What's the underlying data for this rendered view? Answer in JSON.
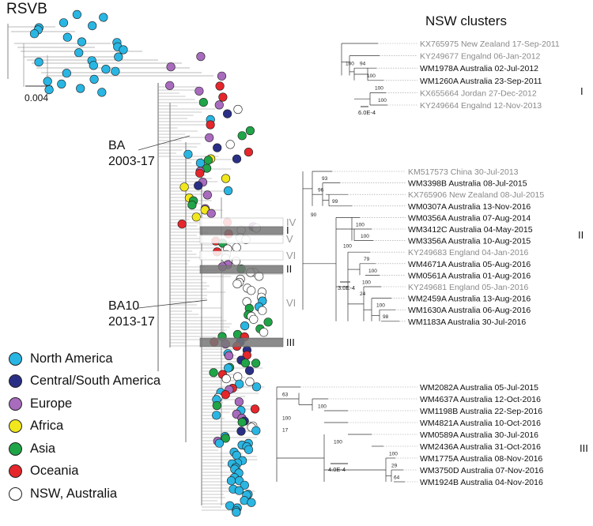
{
  "title": "RSVB",
  "main_scale": "0.004",
  "nsw_title": "NSW clusters",
  "ba_label": {
    "name": "BA",
    "years": "2003-17"
  },
  "ba10_label": {
    "name": "BA10",
    "years": "2013-17"
  },
  "colors": {
    "north_america": "#29b6e3",
    "central_south_america": "#2a2f86",
    "europe": "#a86bbd",
    "africa": "#f1e71c",
    "asia": "#1fa447",
    "oceania": "#e5262b",
    "nsw": "#ffffff"
  },
  "legend": [
    {
      "label": "North America",
      "color": "#29b6e3"
    },
    {
      "label": "Central/South America",
      "color": "#2a2f86"
    },
    {
      "label": "Europe",
      "color": "#a86bbd"
    },
    {
      "label": "Africa",
      "color": "#f1e71c"
    },
    {
      "label": "Asia",
      "color": "#1fa447"
    },
    {
      "label": "Oceania",
      "color": "#e5262b"
    },
    {
      "label": "NSW, Australia",
      "color": "#ffffff"
    }
  ],
  "cluster_marks": [
    "IV",
    "I",
    "V",
    "VI",
    "II",
    "VI",
    "III"
  ],
  "clusters": [
    {
      "id": "I",
      "scale": "6.0E-4",
      "taxa": [
        {
          "label": "KX765975 New Zealand 17-Sep-2011",
          "nsw": false
        },
        {
          "label": "KY249677 Engalnd 06-Jan-2012",
          "nsw": false
        },
        {
          "label": "WM1978A Australia 02-Jul-2012",
          "nsw": true
        },
        {
          "label": "WM1260A Australia 23-Sep-2011",
          "nsw": true
        },
        {
          "label": "KX655664 Jordan 27-Dec-2012",
          "nsw": false
        },
        {
          "label": "KY249664 Engalnd 12-Nov-2013",
          "nsw": false
        }
      ],
      "supports": [
        "100",
        "94",
        "100",
        "100",
        "100"
      ]
    },
    {
      "id": "II",
      "scale": "3.0E-4",
      "taxa": [
        {
          "label": "KM517573 China 30-Jul-2013",
          "nsw": false
        },
        {
          "label": "WM3398B Australia 08-Jul-2015",
          "nsw": true
        },
        {
          "label": "KX765906 New Zealand 08-Jul-2015",
          "nsw": false
        },
        {
          "label": "WM0307A Australia 13-Nov-2016",
          "nsw": true
        },
        {
          "label": "WM0356A Australia 07-Aug-2014",
          "nsw": true
        },
        {
          "label": "WM3412C Australia 04-May-2015",
          "nsw": true
        },
        {
          "label": "WM3356A Australia 10-Aug-2015",
          "nsw": true
        },
        {
          "label": "KY249683 England 04-Jan-2016",
          "nsw": false
        },
        {
          "label": "WM4671A Australia 05-Aug-2016",
          "nsw": true
        },
        {
          "label": "WM0561A Australia 01-Aug-2016",
          "nsw": true
        },
        {
          "label": "KY249681 England 05-Jan-2016",
          "nsw": false
        },
        {
          "label": "WM2459A Australia 13-Aug-2016",
          "nsw": true
        },
        {
          "label": "WM1630A Australia 06-Aug-2016",
          "nsw": true
        },
        {
          "label": "WM1183A Australia 30-Jul-2016",
          "nsw": true
        }
      ],
      "supports": [
        "93",
        "96",
        "99",
        "90",
        "100",
        "100",
        "100",
        "79",
        "100",
        "100",
        "24",
        "100",
        "98"
      ]
    },
    {
      "id": "III",
      "scale": "4.0E-4",
      "taxa": [
        {
          "label": "WM2082A Australia 05-Jul-2015",
          "nsw": true
        },
        {
          "label": "WM4637A Australia 12-Oct-2016",
          "nsw": true
        },
        {
          "label": "WM1198B Australia 22-Sep-2016",
          "nsw": true
        },
        {
          "label": "WM4821A Australia 10-Oct-2016",
          "nsw": true
        },
        {
          "label": "WM0589A Australia 30-Jul-2016",
          "nsw": true
        },
        {
          "label": "WM2436A Australia 31-Oct-2016",
          "nsw": true
        },
        {
          "label": "WM1775A Australia 08-Nov-2016",
          "nsw": true
        },
        {
          "label": "WM3750D Australia 07-Nov-2016",
          "nsw": true
        },
        {
          "label": "WM1924B Australia 04-Nov-2016",
          "nsw": true
        }
      ],
      "supports": [
        "63",
        "100",
        "100",
        "17",
        "100",
        "100",
        "29",
        "64"
      ]
    }
  ]
}
